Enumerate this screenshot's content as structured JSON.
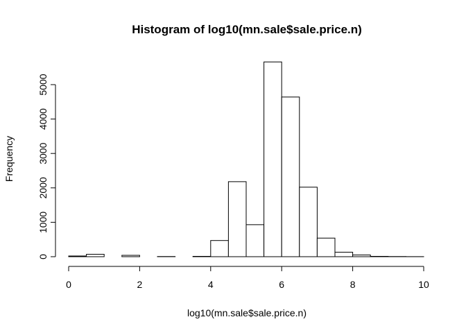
{
  "chart_data": {
    "type": "histogram",
    "title": "Histogram of log10(mn.sale$sale.price.n)",
    "x_label": "log10(mn.sale$sale.price.n)",
    "y_label": "Frequency",
    "bins": [
      0,
      0.5,
      1,
      1.5,
      2,
      2.5,
      3,
      3.5,
      4,
      4.5,
      5,
      5.5,
      6,
      6.5,
      7,
      7.5,
      8,
      8.5,
      9,
      9.5,
      10
    ],
    "values": [
      20,
      70,
      0,
      40,
      0,
      5,
      0,
      10,
      470,
      2180,
      930,
      5660,
      4640,
      2020,
      540,
      130,
      50,
      10,
      5,
      2
    ],
    "color": "#ffffff",
    "xlim": [
      0,
      10
    ],
    "xticks": [
      0,
      2,
      4,
      6,
      8,
      10
    ],
    "ylim": [
      0,
      5700
    ],
    "yticks": [
      0,
      1000,
      2000,
      3000,
      4000,
      5000
    ]
  }
}
